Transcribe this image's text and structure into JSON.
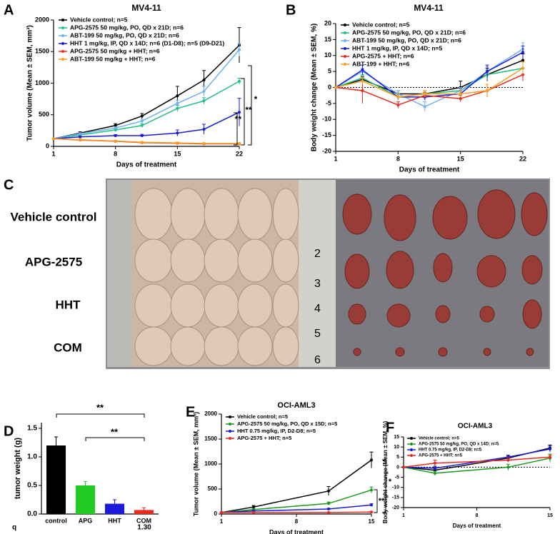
{
  "chart_data": [
    {
      "type": "line",
      "panel": "A",
      "title": "MV4-11",
      "ylabel": "Tumor volume (Mean ± SEM, mm³)",
      "xlabel": "Days of treatment",
      "x": [
        1,
        4,
        8,
        11,
        15,
        18,
        22
      ],
      "xlim": [
        1,
        22
      ],
      "xticks": [
        1,
        8,
        15,
        22
      ],
      "ylim": [
        0,
        2000
      ],
      "yticks": [
        0,
        500,
        1000,
        1500,
        2000
      ],
      "series": [
        {
          "name": "Vehicle control; n=5",
          "color": "#000000",
          "values": [
            120,
            210,
            330,
            480,
            800,
            1050,
            1600
          ],
          "errors": [
            10,
            20,
            30,
            40,
            150,
            150,
            280
          ]
        },
        {
          "name": "APG-2575 50 mg/kg, PO, QD x 21D; n=6",
          "color": "#1fbf80",
          "values": [
            120,
            180,
            260,
            330,
            600,
            720,
            1030
          ],
          "errors": [
            10,
            15,
            20,
            30,
            50,
            50,
            50
          ]
        },
        {
          "name": "ABT-199 50 mg/kg, PO, QD x 21D; n=6",
          "color": "#6fb0f0",
          "values": [
            120,
            200,
            290,
            400,
            680,
            870,
            1530
          ],
          "errors": [
            10,
            15,
            20,
            30,
            50,
            80,
            100
          ]
        },
        {
          "name": "HHT 1 mg/kg, IP, QD x 14D; n=6 (D1-D8); n=5 (D9-D21)",
          "color": "#1a1adc",
          "values": [
            120,
            150,
            170,
            170,
            210,
            270,
            540
          ],
          "errors": [
            10,
            10,
            15,
            20,
            50,
            80,
            220
          ]
        },
        {
          "name": "APG-2575 50 mg/kg + HHT; n=6",
          "color": "#e8291c",
          "values": [
            120,
            100,
            80,
            60,
            50,
            40,
            40
          ],
          "errors": [
            10,
            10,
            10,
            10,
            10,
            10,
            10
          ]
        },
        {
          "name": "ABT-199 50 mg/kg + HHT; n=6",
          "color": "#f5a020",
          "values": [
            120,
            105,
            85,
            65,
            55,
            45,
            45
          ],
          "errors": [
            10,
            10,
            10,
            10,
            10,
            10,
            10
          ]
        }
      ],
      "annotations": [
        "*",
        "**",
        "**"
      ]
    },
    {
      "type": "line",
      "panel": "B",
      "title": "MV4-11",
      "ylabel": "Body weight change (Mean ± SEM, %)",
      "xlabel": "Days of treatment",
      "x": [
        1,
        4,
        8,
        11,
        15,
        18,
        22
      ],
      "xlim": [
        1,
        22
      ],
      "xticks": [
        1,
        8,
        15,
        22
      ],
      "ylim": [
        -20,
        20
      ],
      "yticks": [
        -20,
        -15,
        -10,
        -5,
        0,
        5,
        10,
        15,
        20
      ],
      "zero_line": true,
      "series": [
        {
          "name": "Vehicle control; n=5",
          "color": "#000000",
          "values": [
            0,
            2.5,
            -2,
            -2,
            0,
            4,
            8.5
          ],
          "errors": [
            0,
            1,
            1,
            1,
            2,
            2,
            2
          ]
        },
        {
          "name": "APG-2575 50 mg/kg, PO, QD x 21D; n=6",
          "color": "#1fbf80",
          "values": [
            0,
            3,
            -3,
            -2,
            -1,
            4,
            6
          ],
          "errors": [
            0,
            1,
            1,
            1,
            1,
            1.5,
            2
          ]
        },
        {
          "name": "ABT-199 50 mg/kg, PO, QD x 21D; n=6",
          "color": "#6fb0f0",
          "values": [
            0,
            5,
            -2,
            -6,
            -1,
            5,
            12
          ],
          "errors": [
            0,
            1,
            1,
            1.5,
            1,
            1.5,
            2
          ]
        },
        {
          "name": "HHT 1 mg/kg, IP, QD x 14D; n=5",
          "color": "#1a1adc",
          "values": [
            0,
            5.5,
            -3,
            -3,
            -2,
            5,
            11
          ],
          "errors": [
            0,
            1.5,
            1,
            1,
            1,
            2,
            2
          ]
        },
        {
          "name": "APG-2575 + HHT; n=6",
          "color": "#e8291c",
          "values": [
            0,
            -1,
            -5.5,
            -2.5,
            -3.5,
            -1,
            4
          ],
          "errors": [
            0,
            4,
            1,
            1,
            1,
            2,
            2
          ]
        },
        {
          "name": "ABT-199 + HHT; n=6",
          "color": "#f5a020",
          "values": [
            0,
            2,
            -3,
            -2,
            -2,
            -1,
            6
          ],
          "errors": [
            0,
            1,
            1,
            1,
            1,
            2,
            2
          ]
        }
      ]
    },
    {
      "type": "bar",
      "panel": "D",
      "ylabel": "tumor weight (g)",
      "categories": [
        "control",
        "APG",
        "HHT",
        "COM"
      ],
      "values": [
        1.2,
        0.5,
        0.18,
        0.07
      ],
      "errors": [
        0.15,
        0.07,
        0.07,
        0.04
      ],
      "colors": [
        "#000000",
        "#22cc22",
        "#1a1adc",
        "#e8291c"
      ],
      "ylim": [
        0,
        1.6
      ],
      "yticks": [
        {
          "value": 0,
          "label": "0.0"
        },
        {
          "value": 0.5,
          "label": "0.5"
        },
        {
          "value": 1,
          "label": "1.0"
        },
        {
          "value": 1.5,
          "label": "1.5"
        }
      ],
      "annotations": [
        "**",
        "**",
        "q",
        "1.30"
      ]
    },
    {
      "type": "line",
      "panel": "E",
      "title": "OCI-AML3",
      "ylabel": "Tumor volume (Mean ± SEM, mm³)",
      "xlabel": "Days of treatment",
      "x": [
        1,
        4,
        11,
        15
      ],
      "xlim": [
        1,
        15
      ],
      "xticks": [
        1,
        8,
        15
      ],
      "ylim": [
        0,
        2000
      ],
      "yticks": [
        0,
        500,
        1000,
        1500,
        2000
      ],
      "series": [
        {
          "name": "Vehicle control; n=5",
          "color": "#000000",
          "values": [
            30,
            140,
            460,
            1080
          ],
          "errors": [
            5,
            30,
            90,
            160
          ]
        },
        {
          "name": "APG-2575 50 mg/kg, PO, QD x 15D; n=5",
          "color": "#1a9a1a",
          "values": [
            30,
            90,
            210,
            480
          ],
          "errors": [
            5,
            15,
            30,
            60
          ]
        },
        {
          "name": "HHT 0.75 mg/kg, IP, D2-D8; n=5",
          "color": "#1a1adc",
          "values": [
            30,
            60,
            100,
            180
          ],
          "errors": [
            5,
            10,
            15,
            25
          ]
        },
        {
          "name": "APG-2575 + HHT; n=5",
          "color": "#e8291c",
          "values": [
            30,
            30,
            30,
            40
          ],
          "errors": [
            5,
            5,
            5,
            10
          ]
        }
      ],
      "annotations": [
        "*",
        "**"
      ]
    },
    {
      "type": "line",
      "panel": "F",
      "title": "OCI-AML3",
      "ylabel": "Body weight change (Mean ± SEM, %)",
      "xlabel": "Days of treatment",
      "x": [
        1,
        4,
        11,
        15
      ],
      "xlim": [
        1,
        15
      ],
      "xticks": [
        1,
        8,
        15
      ],
      "ylim": [
        -20,
        15
      ],
      "yticks": [
        -20,
        -15,
        -10,
        -5,
        0,
        5,
        10,
        15
      ],
      "zero_line": true,
      "series": [
        {
          "name": "Vehicle control; n=5",
          "color": "#000000",
          "values": [
            0,
            -1.5,
            4.5,
            9.5
          ],
          "errors": [
            0,
            1.5,
            1,
            1.5
          ]
        },
        {
          "name": "APG-2575 50 mg/kg, PO, QD x 14D; n=5",
          "color": "#1a9a1a",
          "values": [
            0,
            -3,
            0,
            4.5
          ],
          "errors": [
            0,
            1,
            1.5,
            2
          ]
        },
        {
          "name": "HHT 0.75 mg/kg, IP, D2-D8; n=5",
          "color": "#1a1adc",
          "values": [
            0,
            -0.5,
            5,
            9
          ],
          "errors": [
            0,
            1,
            1,
            1.5
          ]
        },
        {
          "name": "APG-2575 + HHT; n=5",
          "color": "#e8291c",
          "values": [
            0,
            2,
            3.5,
            5
          ],
          "errors": [
            0,
            1.5,
            1,
            1
          ]
        }
      ]
    }
  ],
  "photo_panel": {
    "panel": "C",
    "rows": [
      "Vehicle control",
      "APG-2575",
      "HHT",
      "COM"
    ],
    "ruler": [
      "2",
      "3",
      "4",
      "5",
      "6"
    ]
  }
}
